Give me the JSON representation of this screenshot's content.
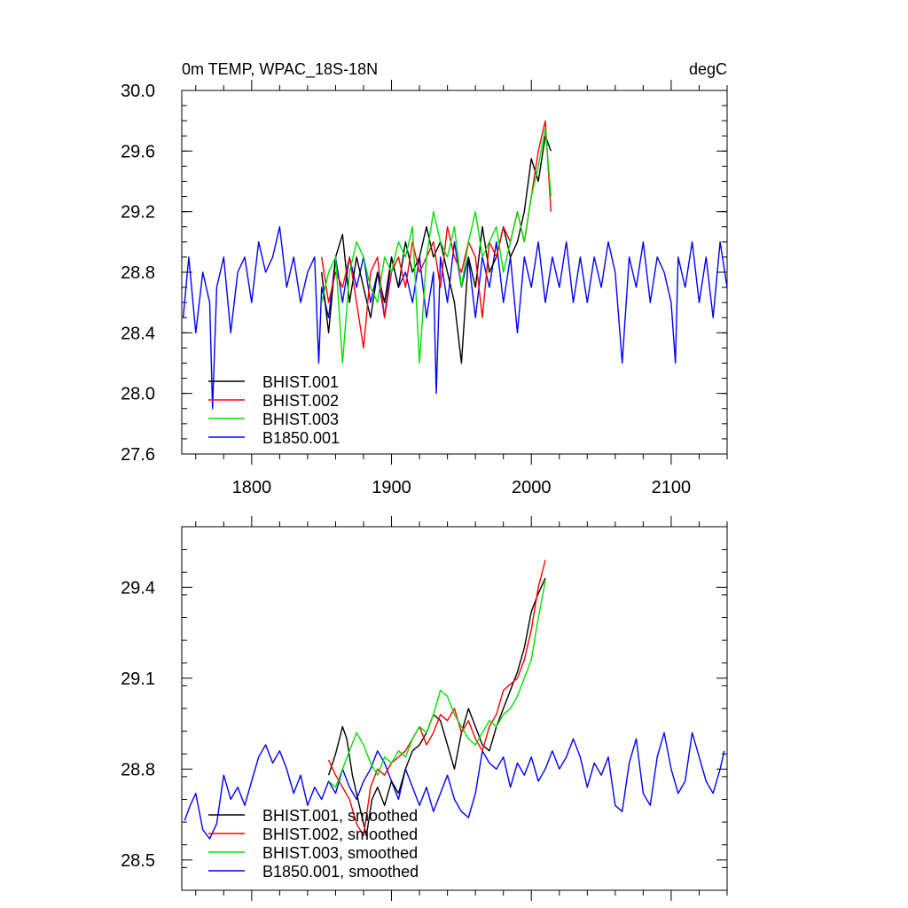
{
  "colors": {
    "black": "#000000",
    "red": "#ff0000",
    "green": "#00e000",
    "blue": "#0000ff"
  },
  "chart_data": [
    {
      "type": "line",
      "title": "0m TEMP, WPAC_18S-18N",
      "units": "degC",
      "xlim": [
        1750,
        2140
      ],
      "ylim": [
        27.6,
        30.0
      ],
      "xticks": [
        1800,
        1900,
        2000,
        2100
      ],
      "yticks": [
        27.6,
        28.0,
        28.4,
        28.8,
        29.2,
        29.6,
        30.0
      ],
      "ytick_labels": [
        "27.6",
        "28.0",
        "28.4",
        "28.8",
        "29.2",
        "29.6",
        "30.0"
      ],
      "legend": "bottom-left",
      "series": [
        {
          "name": "BHIST.001",
          "color": "#000000",
          "x": [
            1850,
            1855,
            1860,
            1865,
            1870,
            1875,
            1880,
            1885,
            1890,
            1895,
            1900,
            1905,
            1910,
            1915,
            1920,
            1925,
            1930,
            1935,
            1940,
            1945,
            1950,
            1955,
            1960,
            1965,
            1970,
            1975,
            1980,
            1985,
            1990,
            1995,
            2000,
            2005,
            2010,
            2014
          ],
          "y": [
            28.8,
            28.4,
            28.9,
            29.05,
            28.6,
            28.9,
            28.7,
            28.5,
            28.8,
            28.6,
            28.9,
            28.7,
            29.0,
            28.8,
            28.9,
            29.1,
            28.9,
            29.0,
            28.8,
            28.6,
            28.2,
            28.9,
            28.7,
            29.1,
            28.8,
            28.9,
            29.1,
            28.9,
            29.0,
            29.2,
            29.55,
            29.4,
            29.7,
            29.6
          ]
        },
        {
          "name": "BHIST.002",
          "color": "#ff0000",
          "x": [
            1850,
            1855,
            1860,
            1865,
            1870,
            1875,
            1880,
            1885,
            1890,
            1895,
            1900,
            1905,
            1910,
            1915,
            1920,
            1925,
            1930,
            1935,
            1940,
            1945,
            1950,
            1955,
            1960,
            1965,
            1970,
            1975,
            1980,
            1985,
            1990,
            1995,
            2000,
            2005,
            2010,
            2014
          ],
          "y": [
            28.9,
            28.6,
            28.8,
            28.7,
            28.9,
            28.6,
            28.3,
            28.8,
            28.9,
            28.5,
            28.8,
            28.9,
            28.7,
            29.0,
            28.8,
            28.9,
            29.0,
            28.7,
            29.1,
            28.9,
            28.8,
            29.0,
            28.9,
            28.5,
            29.0,
            28.9,
            29.1,
            29.0,
            29.2,
            29.0,
            29.3,
            29.6,
            29.8,
            29.2
          ]
        },
        {
          "name": "BHIST.003",
          "color": "#00e000",
          "x": [
            1850,
            1855,
            1860,
            1865,
            1870,
            1875,
            1880,
            1885,
            1890,
            1895,
            1900,
            1905,
            1910,
            1915,
            1920,
            1925,
            1930,
            1935,
            1940,
            1945,
            1950,
            1955,
            1960,
            1965,
            1970,
            1975,
            1980,
            1985,
            1990,
            1995,
            2000,
            2005,
            2010,
            2014
          ],
          "y": [
            28.6,
            28.8,
            28.9,
            28.2,
            28.8,
            29.0,
            28.9,
            28.7,
            28.6,
            28.9,
            28.8,
            29.0,
            28.9,
            29.1,
            28.2,
            28.9,
            29.2,
            29.0,
            28.9,
            29.1,
            28.7,
            29.0,
            29.2,
            28.9,
            29.0,
            29.1,
            28.8,
            29.0,
            29.2,
            29.0,
            29.3,
            29.5,
            29.75,
            29.3
          ]
        },
        {
          "name": "B1850.001",
          "color": "#0000ff",
          "x": [
            1751,
            1755,
            1760,
            1765,
            1770,
            1772,
            1775,
            1780,
            1785,
            1790,
            1795,
            1800,
            1805,
            1810,
            1815,
            1820,
            1825,
            1830,
            1835,
            1840,
            1845,
            1848,
            1850,
            1855,
            1860,
            1865,
            1870,
            1875,
            1880,
            1885,
            1890,
            1895,
            1900,
            1905,
            1910,
            1915,
            1920,
            1925,
            1930,
            1932,
            1935,
            1940,
            1945,
            1950,
            1955,
            1960,
            1965,
            1970,
            1975,
            1980,
            1985,
            1990,
            1995,
            2000,
            2005,
            2010,
            2015,
            2020,
            2025,
            2030,
            2035,
            2040,
            2045,
            2050,
            2055,
            2060,
            2065,
            2070,
            2075,
            2080,
            2085,
            2090,
            2095,
            2100,
            2103,
            2105,
            2110,
            2115,
            2120,
            2125,
            2130,
            2135,
            2140
          ],
          "y": [
            28.5,
            28.9,
            28.4,
            28.8,
            28.6,
            27.9,
            28.7,
            28.9,
            28.4,
            28.8,
            28.9,
            28.6,
            29.0,
            28.8,
            28.9,
            29.1,
            28.7,
            28.9,
            28.6,
            28.8,
            28.9,
            28.2,
            28.7,
            28.5,
            28.9,
            28.6,
            28.9,
            28.7,
            28.9,
            28.6,
            28.8,
            28.5,
            28.9,
            28.7,
            28.8,
            28.6,
            28.9,
            28.5,
            28.8,
            28.0,
            28.9,
            28.6,
            29.0,
            28.7,
            28.9,
            28.5,
            28.9,
            28.7,
            29.0,
            28.6,
            28.9,
            28.4,
            28.9,
            28.7,
            29.0,
            28.6,
            28.9,
            28.7,
            29.0,
            28.6,
            28.9,
            28.6,
            28.9,
            28.7,
            29.0,
            28.8,
            28.2,
            28.9,
            28.7,
            29.0,
            28.6,
            28.9,
            28.8,
            28.6,
            28.2,
            28.9,
            28.7,
            29.0,
            28.6,
            28.9,
            28.5,
            29.0,
            28.7
          ]
        }
      ]
    },
    {
      "type": "line",
      "title": "",
      "xlim": [
        1750,
        2140
      ],
      "ylim": [
        28.4,
        29.6
      ],
      "xticks": [
        1800,
        1900,
        2000,
        2100
      ],
      "yticks": [
        28.5,
        28.8,
        29.1,
        29.4
      ],
      "ytick_labels": [
        "28.5",
        "28.8",
        "29.1",
        "29.4"
      ],
      "legend": "bottom-left",
      "series": [
        {
          "name": "BHIST.001, smoothed",
          "color": "#000000",
          "x": [
            1855,
            1860,
            1865,
            1868,
            1872,
            1875,
            1878,
            1882,
            1886,
            1890,
            1895,
            1900,
            1905,
            1910,
            1915,
            1920,
            1925,
            1930,
            1935,
            1940,
            1945,
            1950,
            1955,
            1960,
            1965,
            1970,
            1975,
            1980,
            1985,
            1990,
            1995,
            2000,
            2005,
            2010
          ],
          "y": [
            28.78,
            28.85,
            28.94,
            28.9,
            28.78,
            28.72,
            28.66,
            28.58,
            28.7,
            28.74,
            28.68,
            28.76,
            28.72,
            28.8,
            28.86,
            28.88,
            28.92,
            28.98,
            28.96,
            28.88,
            28.8,
            28.92,
            29.0,
            28.94,
            28.88,
            28.86,
            28.94,
            29.0,
            29.06,
            29.12,
            29.2,
            29.32,
            29.38,
            29.43
          ]
        },
        {
          "name": "BHIST.002, smoothed",
          "color": "#ff0000",
          "x": [
            1855,
            1860,
            1865,
            1870,
            1875,
            1880,
            1885,
            1890,
            1895,
            1900,
            1905,
            1910,
            1915,
            1920,
            1925,
            1930,
            1935,
            1940,
            1945,
            1950,
            1955,
            1960,
            1965,
            1970,
            1975,
            1980,
            1985,
            1990,
            1995,
            2000,
            2005,
            2010
          ],
          "y": [
            28.83,
            28.78,
            28.74,
            28.7,
            28.62,
            28.58,
            28.74,
            28.8,
            28.78,
            28.82,
            28.84,
            28.86,
            28.9,
            28.94,
            28.88,
            28.92,
            28.98,
            28.96,
            29.0,
            28.92,
            28.96,
            28.9,
            28.86,
            28.94,
            28.98,
            29.06,
            29.08,
            29.1,
            29.16,
            29.26,
            29.4,
            29.49
          ]
        },
        {
          "name": "BHIST.003, smoothed",
          "color": "#00e000",
          "x": [
            1855,
            1860,
            1865,
            1870,
            1875,
            1880,
            1885,
            1890,
            1895,
            1900,
            1905,
            1910,
            1915,
            1920,
            1925,
            1930,
            1935,
            1940,
            1945,
            1950,
            1955,
            1960,
            1965,
            1970,
            1975,
            1980,
            1985,
            1990,
            1995,
            2000,
            2005,
            2010
          ],
          "y": [
            28.76,
            28.74,
            28.8,
            28.86,
            28.92,
            28.88,
            28.82,
            28.78,
            28.84,
            28.82,
            28.86,
            28.84,
            28.9,
            28.94,
            28.92,
            28.98,
            29.06,
            29.04,
            28.98,
            28.94,
            28.9,
            28.88,
            28.92,
            28.96,
            28.94,
            28.98,
            29.0,
            29.04,
            29.1,
            29.16,
            29.3,
            29.42
          ]
        },
        {
          "name": "B1850.001, smoothed",
          "color": "#0000ff",
          "x": [
            1752,
            1756,
            1760,
            1765,
            1770,
            1775,
            1780,
            1785,
            1790,
            1795,
            1800,
            1805,
            1810,
            1815,
            1820,
            1825,
            1830,
            1835,
            1840,
            1845,
            1850,
            1855,
            1860,
            1865,
            1870,
            1875,
            1880,
            1885,
            1890,
            1895,
            1900,
            1905,
            1910,
            1915,
            1920,
            1925,
            1930,
            1935,
            1940,
            1945,
            1950,
            1955,
            1960,
            1965,
            1970,
            1975,
            1980,
            1985,
            1990,
            1995,
            2000,
            2005,
            2010,
            2015,
            2020,
            2025,
            2030,
            2035,
            2040,
            2045,
            2050,
            2055,
            2060,
            2065,
            2070,
            2075,
            2080,
            2085,
            2090,
            2095,
            2100,
            2105,
            2110,
            2115,
            2120,
            2125,
            2130,
            2135,
            2138
          ],
          "y": [
            28.63,
            28.68,
            28.72,
            28.6,
            28.57,
            28.62,
            28.78,
            28.7,
            28.74,
            28.68,
            28.76,
            28.84,
            28.88,
            28.82,
            28.86,
            28.8,
            28.72,
            28.78,
            28.68,
            28.74,
            28.7,
            28.76,
            28.72,
            28.8,
            28.74,
            28.7,
            28.76,
            28.8,
            28.86,
            28.82,
            28.76,
            28.7,
            28.8,
            28.74,
            28.68,
            28.74,
            28.66,
            28.72,
            28.78,
            28.7,
            28.66,
            28.64,
            28.72,
            28.86,
            28.82,
            28.8,
            28.84,
            28.74,
            28.82,
            28.78,
            28.84,
            28.76,
            28.8,
            28.86,
            28.8,
            28.84,
            28.9,
            28.84,
            28.74,
            28.82,
            28.78,
            28.84,
            28.68,
            28.66,
            28.82,
            28.9,
            28.72,
            28.68,
            28.84,
            28.92,
            28.8,
            28.72,
            28.76,
            28.92,
            28.84,
            28.76,
            28.72,
            28.8,
            28.86
          ]
        }
      ]
    }
  ]
}
